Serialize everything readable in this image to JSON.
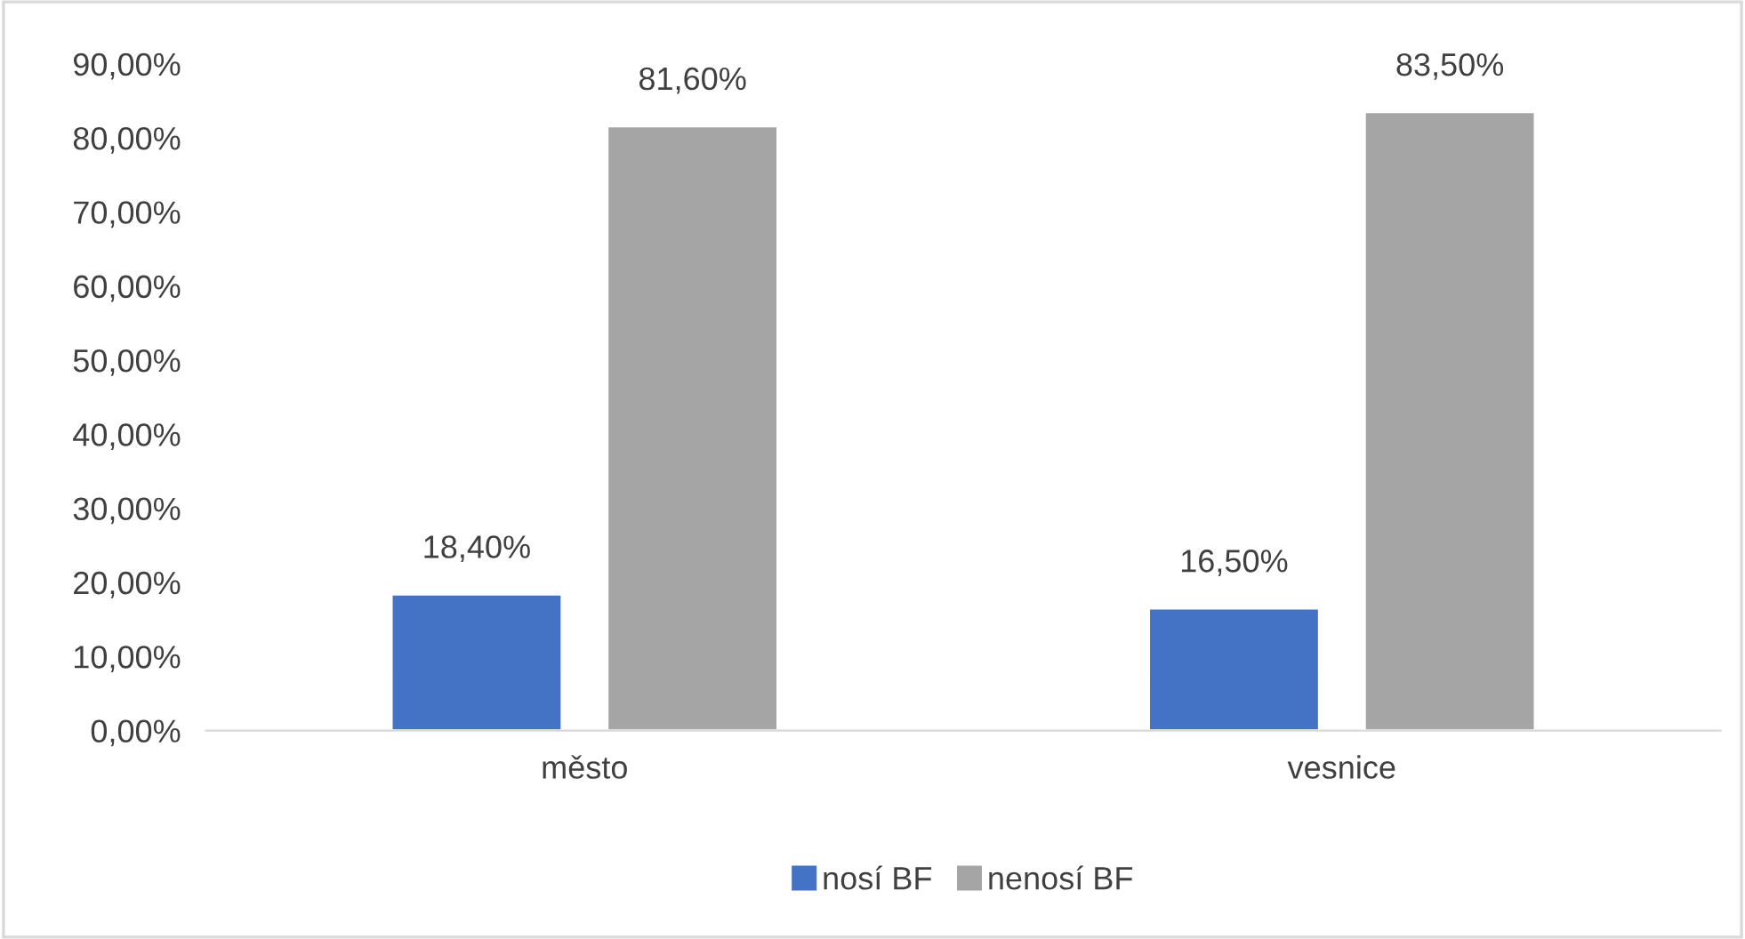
{
  "chart_data": {
    "type": "bar",
    "categories": [
      "město",
      "vesnice"
    ],
    "series": [
      {
        "name": "nosí BF",
        "color": "#4472c4",
        "values": [
          18.4,
          16.5
        ],
        "value_labels": [
          "18,40%",
          "16,50%"
        ]
      },
      {
        "name": "nenosí BF",
        "color": "#a5a5a5",
        "values": [
          81.6,
          83.5
        ],
        "value_labels": [
          "81,60%",
          "83,50%"
        ]
      }
    ],
    "ylim": [
      0,
      90
    ],
    "yticks": [
      {
        "value": 0,
        "label": "0,00%"
      },
      {
        "value": 10,
        "label": "10,00%"
      },
      {
        "value": 20,
        "label": "20,00%"
      },
      {
        "value": 30,
        "label": "30,00%"
      },
      {
        "value": 40,
        "label": "40,00%"
      },
      {
        "value": 50,
        "label": "50,00%"
      },
      {
        "value": 60,
        "label": "60,00%"
      },
      {
        "value": 70,
        "label": "70,00%"
      },
      {
        "value": 80,
        "label": "80,00%"
      },
      {
        "value": 90,
        "label": "90,00%"
      }
    ],
    "grid": false,
    "legend": "bottom"
  }
}
